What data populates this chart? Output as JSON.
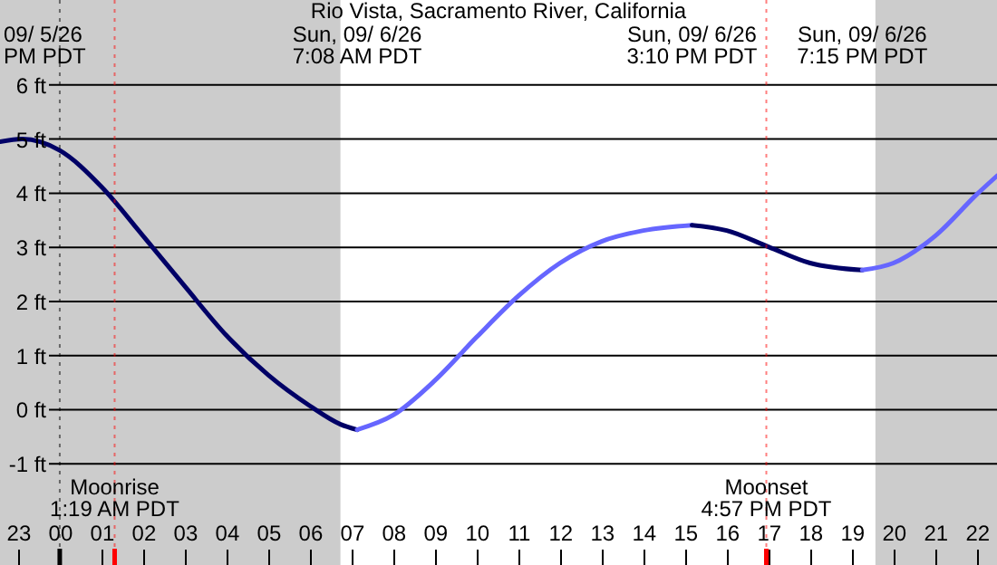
{
  "chart_data": {
    "type": "line",
    "title": "Rio Vista, Sacramento River, California",
    "xlim": [
      "--09-05T22:34",
      "--09-06T22:29"
    ],
    "ylim": [
      -2.87,
      7.57
    ],
    "xticks": [
      {
        "value": "--09-05T23:00",
        "label": "23"
      },
      {
        "value": "--09-06T00:00",
        "label": "00"
      },
      {
        "value": "--09-06T01:00",
        "label": "01"
      },
      {
        "value": "--09-06T02:00",
        "label": "02"
      },
      {
        "value": "--09-06T03:00",
        "label": "03"
      },
      {
        "value": "--09-06T04:00",
        "label": "04"
      },
      {
        "value": "--09-06T05:00",
        "label": "05"
      },
      {
        "value": "--09-06T06:00",
        "label": "06"
      },
      {
        "value": "--09-06T07:00",
        "label": "07"
      },
      {
        "value": "--09-06T08:00",
        "label": "08"
      },
      {
        "value": "--09-06T09:00",
        "label": "09"
      },
      {
        "value": "--09-06T10:00",
        "label": "10"
      },
      {
        "value": "--09-06T11:00",
        "label": "11"
      },
      {
        "value": "--09-06T12:00",
        "label": "12"
      },
      {
        "value": "--09-06T13:00",
        "label": "13"
      },
      {
        "value": "--09-06T14:00",
        "label": "14"
      },
      {
        "value": "--09-06T15:00",
        "label": "15"
      },
      {
        "value": "--09-06T16:00",
        "label": "16"
      },
      {
        "value": "--09-06T17:00",
        "label": "17"
      },
      {
        "value": "--09-06T18:00",
        "label": "18"
      },
      {
        "value": "--09-06T19:00",
        "label": "19"
      },
      {
        "value": "--09-06T20:00",
        "label": "20"
      },
      {
        "value": "--09-06T21:00",
        "label": "21"
      },
      {
        "value": "--09-06T22:00",
        "label": "22"
      }
    ],
    "yticks": [
      {
        "value": -1,
        "label": "-1 ft"
      },
      {
        "value": 0,
        "label": "0 ft"
      },
      {
        "value": 1,
        "label": "1 ft"
      },
      {
        "value": 2,
        "label": "2 ft"
      },
      {
        "value": 3,
        "label": "3 ft"
      },
      {
        "value": 4,
        "label": "4 ft"
      },
      {
        "value": 5,
        "label": "5 ft"
      },
      {
        "value": 6,
        "label": "6 ft"
      }
    ],
    "grid": "y",
    "series": [
      {
        "color": "#000066",
        "x": [
          "--09-05T22:34",
          "--09-05T23:06",
          "--09-06T00:00",
          "--09-06T01:00",
          "--09-06T02:00",
          "--09-06T03:00",
          "--09-06T04:00",
          "--09-06T05:00",
          "--09-06T06:00",
          "--09-06T06:44",
          "--09-06T07:08"
        ],
        "values": [
          4.95,
          5.0,
          4.79,
          4.12,
          3.21,
          2.28,
          1.37,
          0.64,
          0.07,
          -0.27,
          -0.37
        ]
      },
      {
        "color": "#6666ff",
        "x": [
          "--09-06T07:08",
          "--09-06T08:00",
          "--09-06T09:00",
          "--09-06T10:00",
          "--09-06T11:00",
          "--09-06T12:00",
          "--09-06T13:00",
          "--09-06T14:00",
          "--09-06T15:10"
        ],
        "values": [
          -0.37,
          -0.1,
          0.54,
          1.34,
          2.1,
          2.71,
          3.11,
          3.31,
          3.41
        ]
      },
      {
        "color": "#000066",
        "x": [
          "--09-06T15:10",
          "--09-06T16:00",
          "--09-06T17:00",
          "--09-06T18:00",
          "--09-06T19:15"
        ],
        "values": [
          3.41,
          3.31,
          3.01,
          2.71,
          2.58
        ]
      },
      {
        "color": "#6666ff",
        "x": [
          "--09-06T19:15",
          "--09-06T20:00",
          "--09-06T21:00",
          "--09-06T22:00",
          "--09-06T22:29"
        ],
        "values": [
          2.58,
          2.71,
          3.21,
          3.98,
          4.32
        ]
      }
    ],
    "bands": [
      {
        "axis": "x",
        "from": "--09-05T22:34",
        "to": "--09-06T06:44",
        "color": "#cccccc"
      },
      {
        "axis": "x",
        "from": "--09-06T19:34",
        "to": "--09-06T22:29",
        "color": "#cccccc"
      }
    ],
    "ref_lines": [
      {
        "axis": "x",
        "value": "--09-06T00:00",
        "color": "#000000"
      },
      {
        "axis": "x",
        "value": "--09-06T01:19",
        "label": "Moonrise\n1:19 AM PDT",
        "color": "#ff0000"
      },
      {
        "axis": "x",
        "value": "--09-06T16:57",
        "label": "Moonset\n4:57 PM PDT",
        "color": "#ff0000"
      }
    ],
    "annotations": [
      "09/ 5/26\nPM PDT",
      "Sun, 09/ 6/26\n7:08 AM PDT",
      "Sun, 09/ 6/26\n3:10 PM PDT",
      "Sun, 09/ 6/26\n7:15 PM PDT"
    ]
  }
}
